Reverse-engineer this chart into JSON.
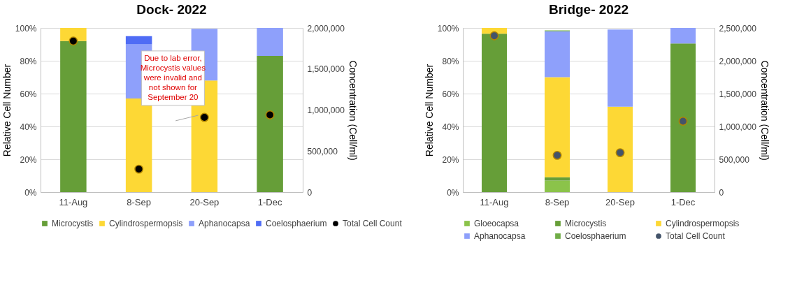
{
  "chart_data": [
    {
      "type": "bar",
      "title": "Dock- 2022",
      "categories": [
        "11-Aug",
        "8-Sep",
        "20-Sep",
        "1-Dec"
      ],
      "stacked": true,
      "ylabel": "Relative Cell Number",
      "y2label": "Concentration (Cell/ml)",
      "ylim": [
        0,
        100
      ],
      "yticks": [
        {
          "value": 0,
          "label": "0%"
        },
        {
          "value": 20,
          "label": "20%"
        },
        {
          "value": 40,
          "label": "40%"
        },
        {
          "value": 60,
          "label": "60%"
        },
        {
          "value": 80,
          "label": "80%"
        },
        {
          "value": 100,
          "label": "100%"
        }
      ],
      "y2lim": [
        0,
        2000000
      ],
      "y2ticks": [
        0,
        {
          "value": 500000,
          "label": "500,000"
        },
        {
          "value": 1000000,
          "label": "1,000,000"
        },
        {
          "value": 1500000,
          "label": "1,500,000"
        },
        {
          "value": 2000000,
          "label": "2,000,000"
        }
      ],
      "grid": "y",
      "legend": "bottom",
      "marker": "circle",
      "annotations": [
        {
          "text": "Due to lab error,\nMicrocystis values\nwere invalid and\nnot shown for\nSeptember 20",
          "x": "20-Sep",
          "y": 45.5
        }
      ],
      "series": [
        {
          "name": "Microcystis",
          "color": "#669e38",
          "values": [
            92,
            0,
            null,
            83
          ]
        },
        {
          "name": "Cylindrospermopsis",
          "color": "#fdd835",
          "values": [
            8,
            57,
            68,
            0
          ]
        },
        {
          "name": "Aphanocapsa",
          "color": "#8ea0fb",
          "values": [
            0,
            33,
            31.5,
            17
          ]
        },
        {
          "name": "Coelosphaerium",
          "color": "#4f6cf5",
          "values": [
            0,
            5,
            0,
            0
          ]
        },
        {
          "name": "Total Cell Count",
          "type": "scatter",
          "axis": "y2",
          "color": "#000000",
          "values": [
            1840000,
            280000,
            910000,
            940000
          ]
        }
      ]
    },
    {
      "type": "bar",
      "title": "Bridge- 2022",
      "categories": [
        "11-Aug",
        "8-Sep",
        "20-Sep",
        "1-Dec"
      ],
      "stacked": true,
      "ylabel": "Relative Cell Number",
      "y2label": "Concentration (Cell/ml)",
      "ylim": [
        0,
        100
      ],
      "yticks": [
        {
          "value": 0,
          "label": "0%"
        },
        {
          "value": 20,
          "label": "20%"
        },
        {
          "value": 40,
          "label": "40%"
        },
        {
          "value": 60,
          "label": "60%"
        },
        {
          "value": 80,
          "label": "80%"
        },
        {
          "value": 100,
          "label": "100%"
        }
      ],
      "y2lim": [
        0,
        2500000
      ],
      "y2ticks": [
        0,
        {
          "value": 500000,
          "label": "500,000"
        },
        {
          "value": 1000000,
          "label": "1,000,000"
        },
        {
          "value": 1500000,
          "label": "1,500,000"
        },
        {
          "value": 2000000,
          "label": "2,000,000"
        },
        {
          "value": 2500000,
          "label": "2,500,000"
        }
      ],
      "grid": "y",
      "legend": "bottom",
      "marker": "circle",
      "series": [
        {
          "name": "Gloeocapsa",
          "color": "#8bc34a",
          "values": [
            0,
            7,
            0,
            0
          ]
        },
        {
          "name": "Microcystis",
          "color": "#669e38",
          "values": [
            96.5,
            2,
            0,
            90.5
          ]
        },
        {
          "name": "Cylindrospermopsis",
          "color": "#fdd835",
          "values": [
            3.5,
            61,
            52,
            0
          ]
        },
        {
          "name": "Aphanocapsa",
          "color": "#8ea0fb",
          "values": [
            0,
            28,
            47,
            9.5
          ]
        },
        {
          "name": "Coelosphaerium",
          "color": "#70ad47",
          "values": [
            0,
            0.5,
            0,
            0
          ]
        },
        {
          "name": "Total Cell Count",
          "type": "scatter",
          "axis": "y2",
          "color": "#44546a",
          "values": [
            2380000,
            560000,
            600000,
            1080000
          ]
        }
      ]
    }
  ]
}
